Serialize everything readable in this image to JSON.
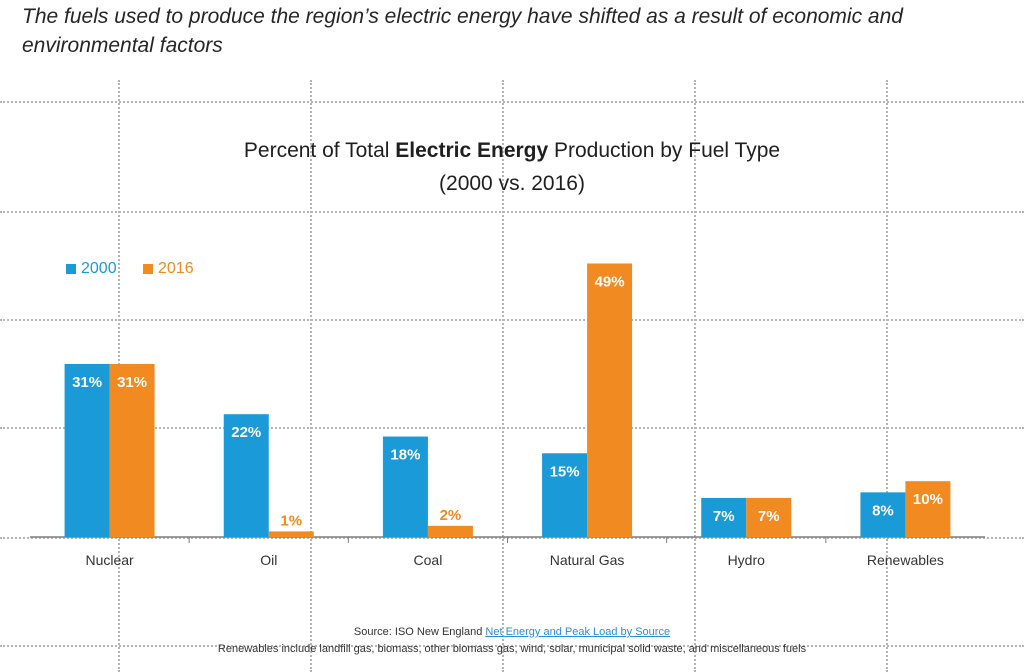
{
  "headline": "The fuels used to produce the region’s electric energy have shifted as a result of economic and environmental factors",
  "colors": {
    "series_2000": "#1a9ad6",
    "series_2016": "#f18a21"
  },
  "chart_data": {
    "type": "bar",
    "title_prefix": "Percent of Total ",
    "title_bold": "Electric Energy",
    "title_suffix": " Production by Fuel Type",
    "subtitle": "(2000 vs. 2016)",
    "categories": [
      "Nuclear",
      "Oil",
      "Coal",
      "Natural Gas",
      "Hydro",
      "Renewables"
    ],
    "series": [
      {
        "name": "2000",
        "values": [
          31,
          22,
          18,
          15,
          7,
          8
        ],
        "labels": [
          "31%",
          "22%",
          "18%",
          "15%",
          "7%",
          "8%"
        ]
      },
      {
        "name": "2016",
        "values": [
          31,
          1,
          2,
          49,
          7,
          10
        ],
        "labels": [
          "31%",
          "1%",
          "2%",
          "49%",
          "7%",
          "10%"
        ]
      }
    ],
    "ylim": [
      0,
      55
    ],
    "legend_position": "top-left",
    "grid": true
  },
  "footer": {
    "source_prefix": "Source: ISO New England ",
    "source_link": "Net Energy and Peak Load by Source",
    "note": "Renewables include landfill gas, biomass, other biomass gas, wind, solar, municipal solid waste, and miscellaneous fuels"
  }
}
